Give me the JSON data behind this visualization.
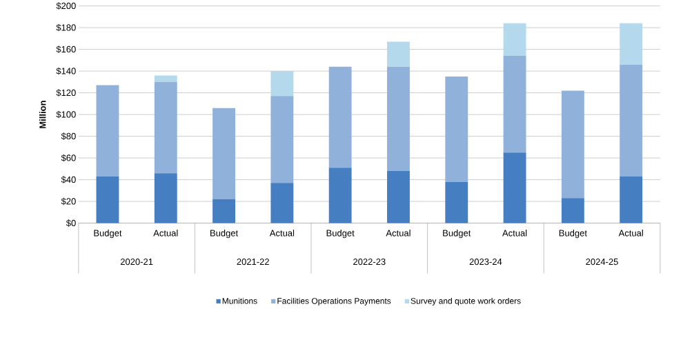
{
  "chart_data": {
    "type": "bar",
    "stacked": true,
    "ylabel": "Million",
    "categories": [
      "Budget",
      "Actual",
      "Budget",
      "Actual",
      "Budget",
      "Actual",
      "Budget",
      "Actual",
      "Budget",
      "Actual"
    ],
    "series": [
      {
        "name": "Munitions",
        "color": "#457fc1",
        "values": [
          43,
          46,
          22,
          37,
          51,
          48,
          38,
          65,
          23,
          43
        ]
      },
      {
        "name": "Facilities Operations Payments",
        "color": "#8fb1da",
        "values": [
          84,
          84,
          84,
          80,
          93,
          96,
          97,
          89,
          99,
          103
        ]
      },
      {
        "name": "Survey and quote work orders",
        "color": "#b4d9ec",
        "values": [
          null,
          6,
          null,
          23,
          null,
          23,
          null,
          30,
          null,
          38
        ]
      }
    ],
    "annotations": [
      "2020-21",
      "2021-22",
      "2022-23",
      "2023-24",
      "2024-25"
    ],
    "ylim": [
      0,
      200
    ],
    "yticks": [
      {
        "value": 0,
        "label": "$0"
      },
      {
        "value": 20,
        "label": "$20"
      },
      {
        "value": 40,
        "label": "$40"
      },
      {
        "value": 60,
        "label": "$60"
      },
      {
        "value": 80,
        "label": "$80"
      },
      {
        "value": 100,
        "label": "$100"
      },
      {
        "value": 120,
        "label": "$120"
      },
      {
        "value": 140,
        "label": "$140"
      },
      {
        "value": 160,
        "label": "$160"
      },
      {
        "value": 180,
        "label": "$180"
      },
      {
        "value": 200,
        "label": "$200"
      }
    ],
    "grid": "y",
    "legend": "bottom"
  }
}
